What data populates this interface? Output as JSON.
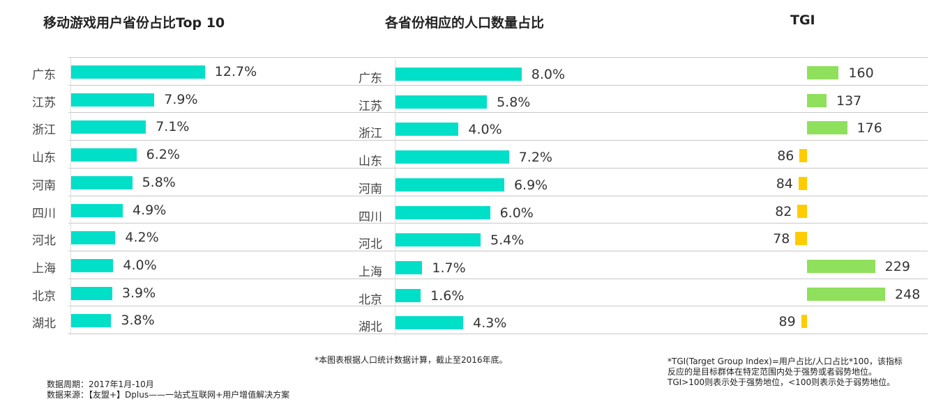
{
  "colors": {
    "teal": "#00dfc8",
    "green": "#8fe05c",
    "yellow": "#ffcc00"
  },
  "chart_data": [
    {
      "type": "bar",
      "title": "移动游戏用户省份占比Top 10",
      "categories": [
        "广东",
        "江苏",
        "浙江",
        "山东",
        "河南",
        "四川",
        "河北",
        "上海",
        "北京",
        "湖北"
      ],
      "values": [
        12.7,
        7.9,
        7.1,
        6.2,
        5.8,
        4.9,
        4.2,
        4.0,
        3.9,
        3.8
      ],
      "labels": [
        "12.7%",
        "7.9%",
        "7.1%",
        "6.2%",
        "5.8%",
        "4.9%",
        "4.2%",
        "4.0%",
        "3.9%",
        "3.8%"
      ],
      "unit": "%"
    },
    {
      "type": "bar",
      "title": "各省份相应的人口数量占比",
      "categories": [
        "广东",
        "江苏",
        "浙江",
        "山东",
        "河南",
        "四川",
        "河北",
        "上海",
        "北京",
        "湖北"
      ],
      "values": [
        8.0,
        5.8,
        4.0,
        7.2,
        6.9,
        6.0,
        5.4,
        1.7,
        1.6,
        4.3
      ],
      "labels": [
        "8.0%",
        "5.8%",
        "4.0%",
        "7.2%",
        "6.9%",
        "6.0%",
        "5.4%",
        "1.7%",
        "1.6%",
        "4.3%"
      ],
      "unit": "%"
    },
    {
      "type": "bar",
      "title": "TGI",
      "baseline": 100,
      "categories": [
        "广东",
        "江苏",
        "浙江",
        "山东",
        "河南",
        "四川",
        "河北",
        "上海",
        "北京",
        "湖北"
      ],
      "values": [
        160,
        137,
        176,
        86,
        84,
        82,
        78,
        229,
        248,
        89
      ],
      "labels": [
        "160",
        "137",
        "176",
        "86",
        "84",
        "82",
        "78",
        "229",
        "248",
        "89"
      ]
    }
  ],
  "notes": {
    "population": "*本图表根据人口统计数据计算，截止至2016年底。",
    "period": "数据周期：2017年1月-10月",
    "source": "数据来源：【友盟+】Dplus——一站式互联网+用户增值解决方案",
    "tgi_1": "*TGI(Target Group Index)=用户占比/人口占比*100，该指标",
    "tgi_2": "反应的是目标群体在特定范围内处于强势或者弱势地位。",
    "tgi_3": "TGI>100则表示处于强势地位，<100则表示处于弱势地位。"
  }
}
